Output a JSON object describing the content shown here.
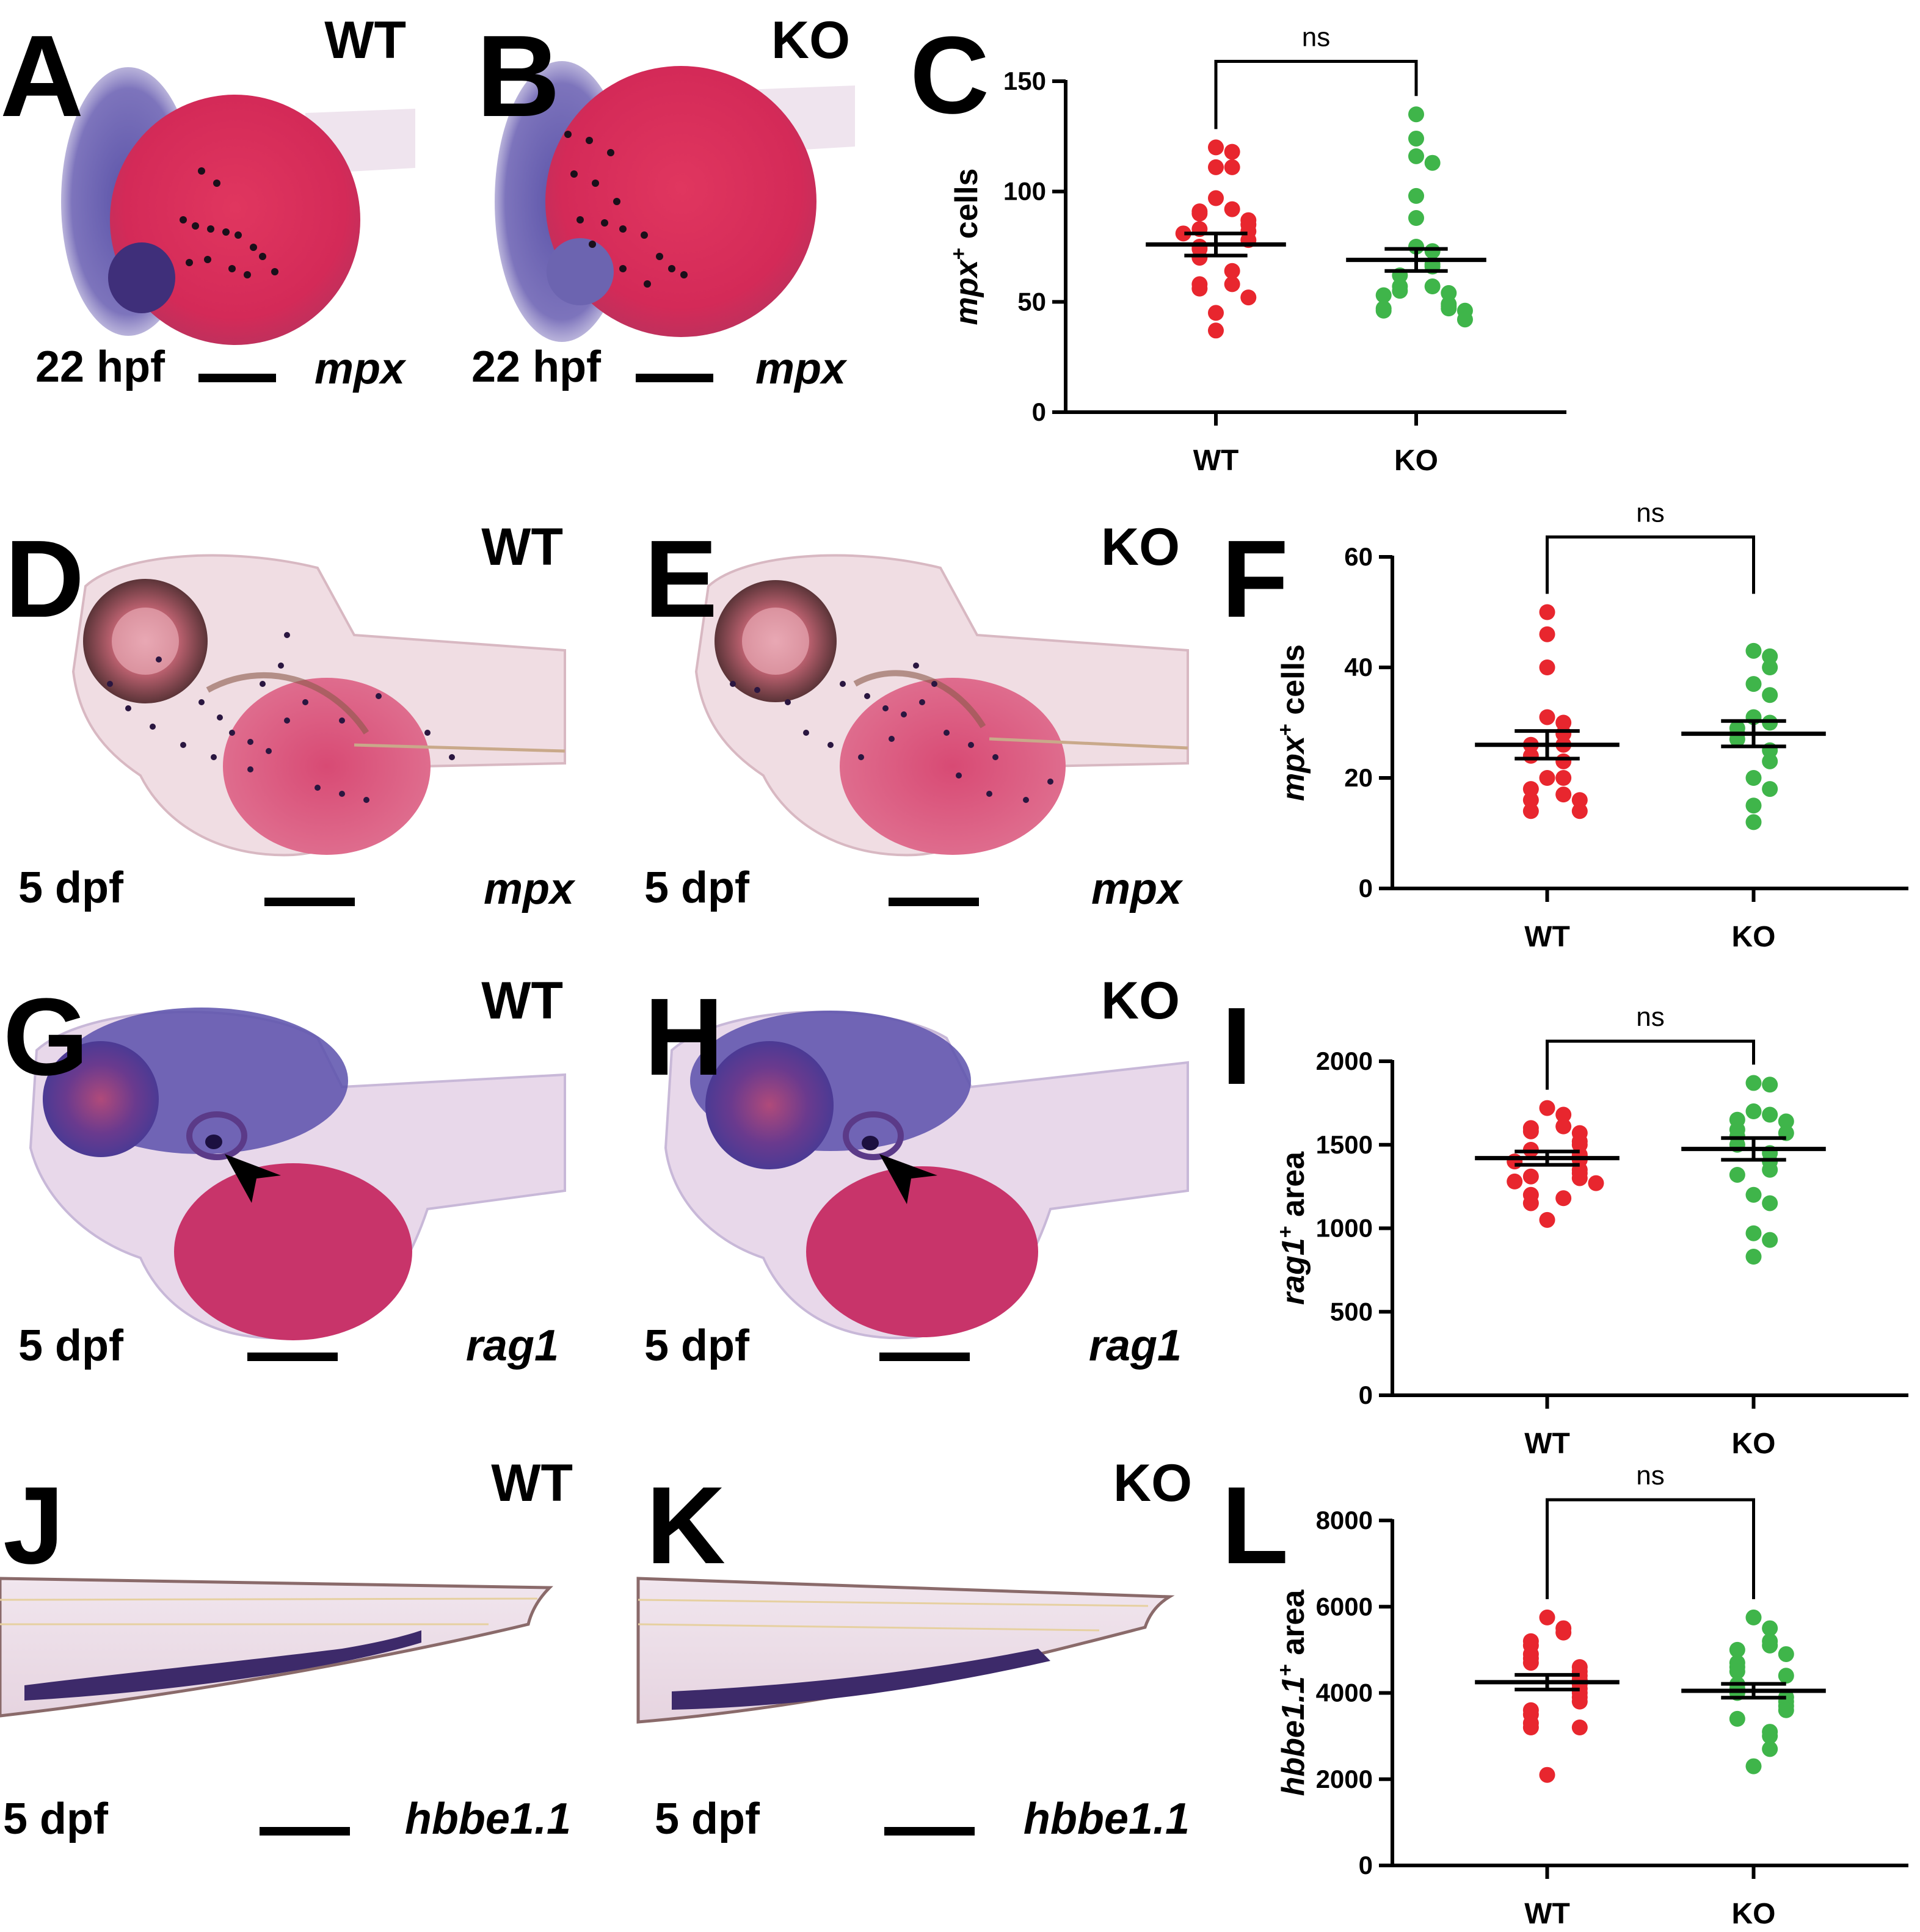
{
  "colors": {
    "wt": "#e8262e",
    "ko": "#3fb54a",
    "axis": "#000000"
  },
  "images": [
    {
      "letter": "A",
      "genotype": "WT",
      "stage": "22 hpf",
      "gene": "mpx"
    },
    {
      "letter": "B",
      "genotype": "KO",
      "stage": "22 hpf",
      "gene": "mpx"
    },
    {
      "letter": "D",
      "genotype": "WT",
      "stage": "5 dpf",
      "gene": "mpx"
    },
    {
      "letter": "E",
      "genotype": "KO",
      "stage": "5 dpf",
      "gene": "mpx"
    },
    {
      "letter": "G",
      "genotype": "WT",
      "stage": "5 dpf",
      "gene": "rag1"
    },
    {
      "letter": "H",
      "genotype": "KO",
      "stage": "5 dpf",
      "gene": "rag1"
    },
    {
      "letter": "J",
      "genotype": "WT",
      "stage": "5 dpf",
      "gene": "hbbe1.1"
    },
    {
      "letter": "K",
      "genotype": "KO",
      "stage": "5 dpf",
      "gene": "hbbe1.1"
    }
  ],
  "chart_data": [
    {
      "letter": "C",
      "type": "scatter",
      "ylabel_gene": "mpx",
      "ylabel_sup": "+",
      "ylabel_rest": " cells",
      "ylim": [
        0,
        150
      ],
      "yticks": [
        "0",
        "50",
        "100",
        "150"
      ],
      "categories": [
        "WT",
        "KO"
      ],
      "significance": "ns",
      "series": [
        {
          "name": "WT",
          "mean": 76,
          "sem": 5,
          "values": [
            120,
            118,
            111,
            111,
            97,
            92,
            91,
            90,
            87,
            85,
            83,
            82,
            81,
            78,
            75,
            74,
            70,
            64,
            58,
            58,
            56,
            52,
            45,
            37
          ]
        },
        {
          "name": "KO",
          "mean": 69,
          "sem": 5,
          "values": [
            135,
            124,
            116,
            113,
            98,
            88,
            75,
            73,
            67,
            66,
            62,
            57,
            57,
            55,
            54,
            53,
            49,
            48,
            47,
            47,
            46,
            46,
            42
          ]
        }
      ]
    },
    {
      "letter": "F",
      "type": "scatter",
      "ylabel_gene": "mpx",
      "ylabel_sup": "+",
      "ylabel_rest": " cells",
      "ylim": [
        0,
        60
      ],
      "yticks": [
        "0",
        "20",
        "40",
        "60"
      ],
      "categories": [
        "WT",
        "KO"
      ],
      "significance": "ns",
      "series": [
        {
          "name": "WT",
          "mean": 26,
          "sem": 2.5,
          "values": [
            50,
            46,
            40,
            31,
            30,
            28,
            26,
            26,
            24,
            23,
            20,
            20,
            18,
            17,
            16,
            16,
            14,
            14
          ]
        },
        {
          "name": "KO",
          "mean": 28,
          "sem": 2.3,
          "values": [
            43,
            42,
            40,
            37,
            35,
            31,
            30,
            29,
            28,
            27,
            25,
            23,
            20,
            18,
            15,
            12
          ]
        }
      ]
    },
    {
      "letter": "I",
      "type": "scatter",
      "ylabel_gene": "rag1",
      "ylabel_sup": "+",
      "ylabel_rest": " area",
      "ylim": [
        0,
        2000
      ],
      "yticks": [
        "0",
        "500",
        "1000",
        "1500",
        "2000"
      ],
      "categories": [
        "WT",
        "KO"
      ],
      "significance": "ns",
      "series": [
        {
          "name": "WT",
          "mean": 1420,
          "sem": 40,
          "values": [
            1720,
            1680,
            1610,
            1600,
            1580,
            1570,
            1520,
            1500,
            1470,
            1440,
            1430,
            1410,
            1400,
            1350,
            1330,
            1310,
            1300,
            1280,
            1270,
            1200,
            1180,
            1150,
            1050
          ]
        },
        {
          "name": "KO",
          "mean": 1475,
          "sem": 65,
          "values": [
            1870,
            1860,
            1700,
            1680,
            1650,
            1640,
            1590,
            1570,
            1550,
            1500,
            1450,
            1400,
            1350,
            1320,
            1200,
            1150,
            970,
            930,
            830
          ]
        }
      ]
    },
    {
      "letter": "L",
      "type": "scatter",
      "ylabel_gene": "hbbe1.1",
      "ylabel_sup": "+",
      "ylabel_rest": " area",
      "ylim": [
        0,
        8000
      ],
      "yticks": [
        "0",
        "2000",
        "4000",
        "6000",
        "8000"
      ],
      "categories": [
        "WT",
        "KO"
      ],
      "significance": "ns",
      "series": [
        {
          "name": "WT",
          "mean": 4250,
          "sem": 170,
          "values": [
            5750,
            5500,
            5400,
            5200,
            5100,
            4900,
            4800,
            4700,
            4600,
            4500,
            4400,
            4300,
            4200,
            4100,
            4000,
            3900,
            3800,
            3600,
            3500,
            3300,
            3200,
            3200,
            2100
          ]
        },
        {
          "name": "KO",
          "mean": 4050,
          "sem": 160,
          "values": [
            5750,
            5500,
            5200,
            5100,
            5000,
            4900,
            4700,
            4600,
            4500,
            4400,
            4200,
            4100,
            4000,
            3900,
            3800,
            3700,
            3600,
            3400,
            3100,
            3000,
            2700,
            2300
          ]
        }
      ]
    }
  ]
}
